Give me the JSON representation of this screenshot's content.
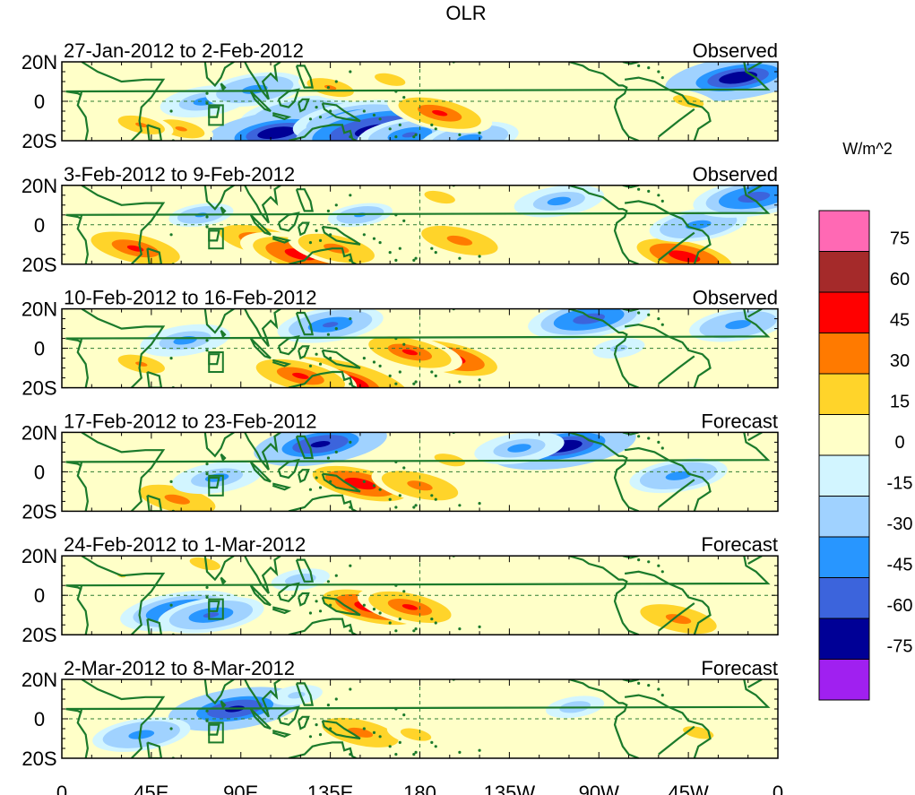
{
  "chart_data": {
    "type": "heatmap",
    "title": "OLR",
    "colorbar": {
      "units": "W/m^2",
      "levels": [
        "75",
        "60",
        "45",
        "30",
        "15",
        "0",
        "-15",
        "-30",
        "-45",
        "-60",
        "-75"
      ],
      "colors": [
        "#ff69b4",
        "#a52a2a",
        "#ff0000",
        "#ff7a00",
        "#ffd42a",
        "#ffffc8",
        "#d2f5ff",
        "#a0d2ff",
        "#2896ff",
        "#3c64dc",
        "#000096",
        "#a020f0"
      ]
    },
    "x_ticks": [
      "0",
      "45E",
      "90E",
      "135E",
      "180",
      "135W",
      "90W",
      "45W",
      "0"
    ],
    "x_values_deg_east": [
      0,
      45,
      90,
      135,
      180,
      225,
      270,
      315,
      360
    ],
    "y_ticks": [
      "20N",
      "0",
      "20S"
    ],
    "y_values_deg_north": [
      20,
      0,
      -20
    ],
    "panels": [
      {
        "period": "27-Jan-2012 to 2-Feb-2012",
        "type": "Observed",
        "anomalies": [
          {
            "lon": 118,
            "lat": -7,
            "value": -50
          },
          {
            "lon": 122,
            "lat": -12,
            "value": -62
          },
          {
            "lon": 108,
            "lat": -16,
            "value": -70
          },
          {
            "lon": 148,
            "lat": -10,
            "value": -58
          },
          {
            "lon": 158,
            "lat": -15,
            "value": -80
          },
          {
            "lon": 175,
            "lat": -17,
            "value": -45
          },
          {
            "lon": 205,
            "lat": -19,
            "value": -40
          },
          {
            "lon": 340,
            "lat": 12,
            "value": -70
          },
          {
            "lon": 72,
            "lat": 0,
            "value": -35
          },
          {
            "lon": 97,
            "lat": 6,
            "value": -40
          },
          {
            "lon": 190,
            "lat": -6,
            "value": 45
          },
          {
            "lon": 60,
            "lat": -14,
            "value": 30
          },
          {
            "lon": 135,
            "lat": 7,
            "value": 30
          },
          {
            "lon": 165,
            "lat": 11,
            "value": 25
          },
          {
            "lon": 315,
            "lat": 0,
            "value": 25
          },
          {
            "lon": 40,
            "lat": -12,
            "value": 30
          }
        ]
      },
      {
        "period": "3-Feb-2012 to 9-Feb-2012",
        "type": "Observed",
        "anomalies": [
          {
            "lon": 100,
            "lat": -8,
            "value": 45
          },
          {
            "lon": 120,
            "lat": -15,
            "value": 55
          },
          {
            "lon": 37,
            "lat": -12,
            "value": 50
          },
          {
            "lon": 200,
            "lat": -8,
            "value": 40
          },
          {
            "lon": 313,
            "lat": -16,
            "value": 55
          },
          {
            "lon": 190,
            "lat": 14,
            "value": 25
          },
          {
            "lon": 150,
            "lat": 5,
            "value": -30
          },
          {
            "lon": 320,
            "lat": 0,
            "value": -40
          },
          {
            "lon": 348,
            "lat": 14,
            "value": -55
          },
          {
            "lon": 250,
            "lat": 12,
            "value": -35
          },
          {
            "lon": 70,
            "lat": 5,
            "value": -30
          },
          {
            "lon": 138,
            "lat": -12,
            "value": 40
          }
        ]
      },
      {
        "period": "10-Feb-2012 to 16-Feb-2012",
        "type": "Observed",
        "anomalies": [
          {
            "lon": 195,
            "lat": -5,
            "value": 55
          },
          {
            "lon": 175,
            "lat": -2,
            "value": 45
          },
          {
            "lon": 140,
            "lat": -17,
            "value": 65
          },
          {
            "lon": 120,
            "lat": -14,
            "value": 50
          },
          {
            "lon": 135,
            "lat": 12,
            "value": -45
          },
          {
            "lon": 265,
            "lat": 15,
            "value": -55
          },
          {
            "lon": 340,
            "lat": 12,
            "value": -40
          },
          {
            "lon": 62,
            "lat": 4,
            "value": -35
          },
          {
            "lon": 40,
            "lat": -8,
            "value": 30
          },
          {
            "lon": 280,
            "lat": 0,
            "value": -20
          }
        ]
      },
      {
        "period": "17-Feb-2012 to 23-Feb-2012",
        "type": "Forecast",
        "anomalies": [
          {
            "lon": 150,
            "lat": -6,
            "value": 55
          },
          {
            "lon": 180,
            "lat": -7,
            "value": 40
          },
          {
            "lon": 58,
            "lat": -14,
            "value": 40
          },
          {
            "lon": 130,
            "lat": 14,
            "value": -62
          },
          {
            "lon": 252,
            "lat": 13,
            "value": -70
          },
          {
            "lon": 230,
            "lat": 12,
            "value": -35
          },
          {
            "lon": 310,
            "lat": -2,
            "value": -40
          },
          {
            "lon": 78,
            "lat": -3,
            "value": -35
          },
          {
            "lon": 195,
            "lat": 6,
            "value": 25
          }
        ]
      },
      {
        "period": "24-Feb-2012 to 1-Mar-2012",
        "type": "Forecast",
        "anomalies": [
          {
            "lon": 155,
            "lat": -6,
            "value": 55
          },
          {
            "lon": 175,
            "lat": -6,
            "value": 45
          },
          {
            "lon": 60,
            "lat": -8,
            "value": -55
          },
          {
            "lon": 75,
            "lat": -10,
            "value": -45
          },
          {
            "lon": 310,
            "lat": -12,
            "value": 40
          },
          {
            "lon": 120,
            "lat": 8,
            "value": -25
          },
          {
            "lon": 72,
            "lat": 16,
            "value": 25
          },
          {
            "lon": 30,
            "lat": 10,
            "value": 15
          }
        ]
      },
      {
        "period": "2-Mar-2012 to 8-Mar-2012",
        "type": "Forecast",
        "anomalies": [
          {
            "lon": 87,
            "lat": 5,
            "value": -62
          },
          {
            "lon": 40,
            "lat": -8,
            "value": -40
          },
          {
            "lon": 150,
            "lat": -7,
            "value": 40
          },
          {
            "lon": 178,
            "lat": -8,
            "value": 25
          },
          {
            "lon": 320,
            "lat": -7,
            "value": 25
          },
          {
            "lon": 258,
            "lat": 6,
            "value": -25
          },
          {
            "lon": 118,
            "lat": 12,
            "value": -20
          }
        ]
      }
    ]
  }
}
